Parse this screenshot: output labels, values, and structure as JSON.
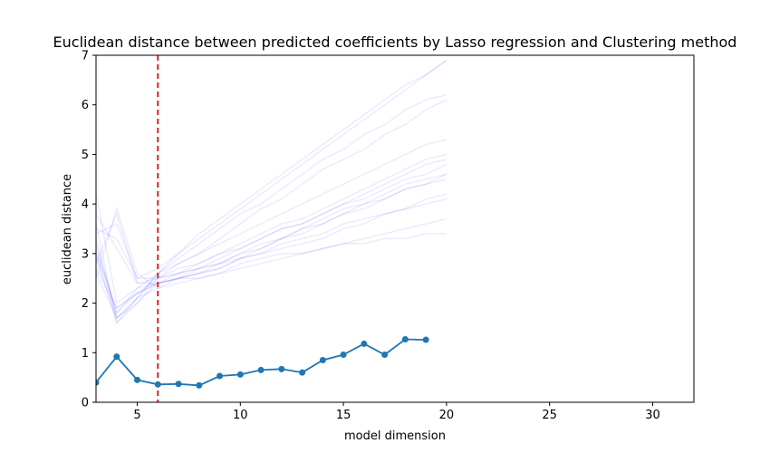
{
  "chart_data": {
    "type": "line",
    "title": "Euclidean distance between predicted coefficients by Lasso regression and Clustering method",
    "xlabel": "model dimension",
    "ylabel": "euclidean distance",
    "xlim": [
      3,
      32
    ],
    "ylim": [
      0,
      7
    ],
    "xticks": [
      5,
      10,
      15,
      20,
      25,
      30
    ],
    "yticks": [
      0,
      1,
      2,
      3,
      4,
      5,
      6,
      7
    ],
    "grid": false,
    "reference_line": {
      "x": 6,
      "color": "#d62728",
      "style": "dashed"
    },
    "series": [
      {
        "color": "#1f77b4",
        "marker": "circle",
        "x": [
          3,
          4,
          5,
          6,
          7,
          8,
          9,
          10,
          11,
          12,
          13,
          14,
          15,
          16,
          17,
          18,
          19
        ],
        "values": [
          0.4,
          0.92,
          0.45,
          0.36,
          0.37,
          0.34,
          0.53,
          0.56,
          0.65,
          0.67,
          0.6,
          0.85,
          0.96,
          1.18,
          0.96,
          1.27,
          1.26
        ]
      }
    ],
    "background_trials": {
      "color": "#0000ff",
      "opacity": 0.04,
      "x": [
        3,
        4,
        5,
        6,
        7,
        8,
        9,
        10,
        11,
        12,
        13,
        14,
        15,
        16,
        17,
        18,
        19,
        20
      ],
      "lines": [
        [
          3.3,
          1.7,
          2.0,
          2.4,
          2.5,
          2.6,
          2.7,
          2.9,
          3.0,
          3.1,
          3.2,
          3.3,
          3.5,
          3.6,
          3.8,
          3.9,
          4.0,
          4.1
        ],
        [
          2.8,
          3.8,
          2.4,
          2.5,
          2.6,
          2.7,
          2.8,
          3.0,
          3.2,
          3.3,
          3.5,
          3.7,
          3.9,
          4.0,
          4.2,
          4.4,
          4.5,
          4.6
        ],
        [
          3.6,
          1.6,
          2.1,
          2.6,
          3.0,
          3.4,
          3.7,
          4.0,
          4.3,
          4.6,
          4.9,
          5.2,
          5.5,
          5.8,
          6.1,
          6.4,
          6.6,
          6.9
        ],
        [
          2.5,
          3.9,
          2.6,
          2.3,
          2.5,
          2.6,
          2.8,
          2.9,
          3.1,
          3.3,
          3.4,
          3.6,
          3.8,
          3.9,
          4.1,
          4.3,
          4.4,
          4.5
        ],
        [
          3.1,
          1.8,
          2.2,
          2.5,
          2.7,
          2.8,
          3.0,
          3.2,
          3.4,
          3.6,
          3.7,
          3.9,
          4.1,
          4.3,
          4.5,
          4.7,
          4.9,
          5.0
        ],
        [
          4.2,
          2.0,
          2.3,
          2.4,
          2.5,
          2.5,
          2.6,
          2.8,
          2.9,
          3.0,
          3.0,
          3.1,
          3.2,
          3.2,
          3.3,
          3.3,
          3.4,
          3.4
        ],
        [
          2.9,
          1.7,
          2.1,
          2.6,
          2.9,
          3.2,
          3.5,
          3.8,
          4.0,
          4.3,
          4.6,
          4.9,
          5.1,
          5.4,
          5.6,
          5.9,
          6.1,
          6.2
        ],
        [
          3.4,
          3.6,
          2.5,
          2.5,
          2.6,
          2.7,
          2.9,
          3.1,
          3.3,
          3.5,
          3.6,
          3.8,
          4.0,
          4.2,
          4.4,
          4.6,
          4.8,
          4.9
        ],
        [
          2.7,
          1.9,
          2.2,
          2.4,
          2.5,
          2.6,
          2.7,
          2.9,
          3.0,
          3.2,
          3.3,
          3.4,
          3.6,
          3.7,
          3.8,
          3.9,
          4.1,
          4.2
        ],
        [
          3.0,
          1.6,
          2.0,
          2.5,
          2.8,
          3.0,
          3.3,
          3.6,
          3.9,
          4.1,
          4.4,
          4.7,
          4.9,
          5.1,
          5.4,
          5.6,
          5.9,
          6.1
        ],
        [
          3.8,
          3.1,
          2.4,
          2.4,
          2.5,
          2.7,
          2.8,
          3.0,
          3.1,
          3.3,
          3.5,
          3.6,
          3.8,
          4.0,
          4.1,
          4.3,
          4.4,
          4.6
        ],
        [
          3.2,
          1.8,
          2.3,
          2.6,
          2.8,
          3.0,
          3.2,
          3.4,
          3.6,
          3.8,
          4.0,
          4.2,
          4.4,
          4.6,
          4.8,
          5.0,
          5.2,
          5.3
        ],
        [
          2.6,
          1.7,
          2.1,
          2.3,
          2.4,
          2.5,
          2.6,
          2.7,
          2.8,
          2.9,
          3.0,
          3.1,
          3.2,
          3.3,
          3.4,
          3.5,
          3.6,
          3.7
        ],
        [
          3.5,
          3.3,
          2.5,
          2.7,
          3.0,
          3.3,
          3.6,
          3.9,
          4.2,
          4.5,
          4.8,
          5.1,
          5.4,
          5.7,
          6.0,
          6.3,
          6.6,
          6.9
        ],
        [
          3.0,
          1.9,
          2.2,
          2.4,
          2.6,
          2.8,
          3.0,
          3.1,
          3.3,
          3.5,
          3.6,
          3.8,
          4.0,
          4.1,
          4.3,
          4.5,
          4.6,
          4.8
        ]
      ]
    }
  }
}
